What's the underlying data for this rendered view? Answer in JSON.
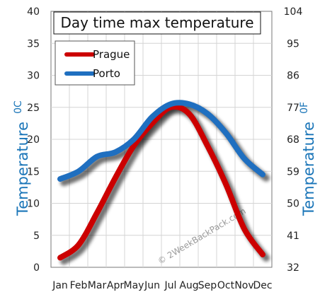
{
  "chart_data": {
    "type": "line",
    "title": "Day time max temperature",
    "categories": [
      "Jan",
      "Feb",
      "Mar",
      "Apr",
      "May",
      "Jun",
      "Jul",
      "Aug",
      "Sep",
      "Oct",
      "Nov",
      "Dec"
    ],
    "series": [
      {
        "name": "Prague",
        "color": "#cc0000",
        "values": [
          1.5,
          3.5,
          8.5,
          14,
          19,
          22.5,
          25,
          24,
          19,
          13,
          6,
          2
        ]
      },
      {
        "name": "Porto",
        "color": "#1f6fc0",
        "values": [
          13.8,
          15,
          17.3,
          18,
          20,
          23.5,
          25.5,
          25.5,
          24,
          21,
          17,
          14.5
        ]
      }
    ],
    "ylabel": "Temperature",
    "ylabel_unit": "0C",
    "ylabel_right": "Temperature",
    "ylabel_right_unit": "0F",
    "ylim": [
      0,
      40
    ],
    "yticks": [
      "0",
      "5",
      "10",
      "15",
      "20",
      "25",
      "30",
      "35",
      "40"
    ],
    "ylim_right": [
      32,
      104
    ],
    "yticks_right": [
      "32",
      "41",
      "50",
      "59",
      "68",
      "77",
      "86",
      "95",
      "104"
    ],
    "grid": true,
    "legend_position": "top-left",
    "axis_label_color": "#1a75b8"
  },
  "watermark": "© 2WeekBackPack.com"
}
